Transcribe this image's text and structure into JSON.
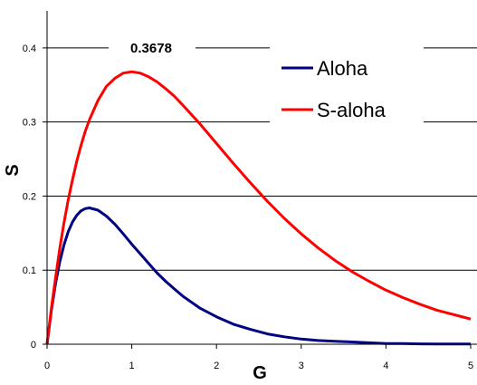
{
  "chart_data": {
    "type": "line",
    "xlabel": "G",
    "ylabel": "S",
    "xlim": [
      0,
      5
    ],
    "ylim": [
      0,
      0.45
    ],
    "x_ticks": [
      "0",
      "1",
      "2",
      "3",
      "4",
      "5"
    ],
    "y_ticks": [
      "0",
      "0.1",
      "0.2",
      "0.3",
      "0.4"
    ],
    "y_tick_values": [
      0,
      0.1,
      0.2,
      0.3,
      0.4
    ],
    "grid": "horizontal",
    "legend_position": "top-right",
    "annotation": {
      "text": "0.3678",
      "y": 0.4
    },
    "x": [
      0,
      0.05,
      0.1,
      0.15,
      0.2,
      0.25,
      0.3,
      0.35,
      0.4,
      0.45,
      0.5,
      0.6,
      0.7,
      0.8,
      0.9,
      1.0,
      1.1,
      1.2,
      1.3,
      1.4,
      1.5,
      1.6,
      1.8,
      2.0,
      2.2,
      2.4,
      2.6,
      2.8,
      3.0,
      3.2,
      3.4,
      3.6,
      3.8,
      4.0,
      4.2,
      4.4,
      4.6,
      4.8,
      5.0
    ],
    "series": [
      {
        "name": "Aloha",
        "color": "#000080",
        "values": [
          0,
          0.045,
          0.082,
          0.111,
          0.134,
          0.152,
          0.165,
          0.174,
          0.18,
          0.183,
          0.184,
          0.181,
          0.173,
          0.162,
          0.149,
          0.135,
          0.122,
          0.109,
          0.096,
          0.085,
          0.075,
          0.065,
          0.049,
          0.037,
          0.027,
          0.02,
          0.014,
          0.01,
          0.007,
          0.005,
          0.004,
          0.003,
          0.002,
          0.001,
          0.001,
          0.0005,
          0.0004,
          0.0003,
          0.0002
        ]
      },
      {
        "name": "S-aloha",
        "color": "#ff0000",
        "values": [
          0,
          0.048,
          0.09,
          0.129,
          0.164,
          0.195,
          0.222,
          0.247,
          0.268,
          0.287,
          0.303,
          0.329,
          0.348,
          0.359,
          0.366,
          0.3678,
          0.366,
          0.361,
          0.354,
          0.345,
          0.335,
          0.323,
          0.298,
          0.271,
          0.244,
          0.218,
          0.193,
          0.17,
          0.149,
          0.13,
          0.113,
          0.098,
          0.085,
          0.073,
          0.063,
          0.054,
          0.046,
          0.04,
          0.034
        ]
      }
    ]
  }
}
